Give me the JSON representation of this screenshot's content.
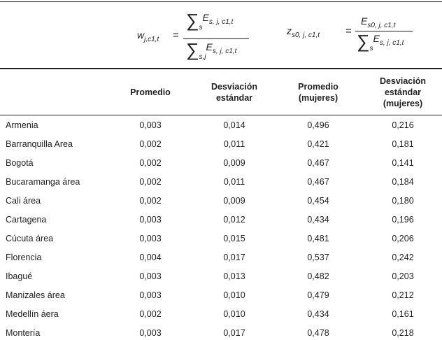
{
  "formulas": {
    "sum": "∑",
    "equals": "=",
    "w": {
      "symbol": "w",
      "symbol_sub": "j,c1,t",
      "num_sum_sub": "s",
      "num_E": "E",
      "num_E_sub": "s, j, c1,t",
      "den_sum_sub": "s,j",
      "den_E": "E",
      "den_E_sub": "s, j, c1,t"
    },
    "z": {
      "symbol": "z",
      "symbol_sub": "s0, j, c1,t",
      "num_E": "E",
      "num_E_sub": "s0, j, c1,t",
      "den_sum_sub": "s",
      "den_E": "E",
      "den_E_sub": "s, j, c1,t"
    }
  },
  "table": {
    "columns": [
      "Promedio",
      "Desviación estándar",
      "Promedio (mujeres)",
      "Desviación estándar (mujeres)"
    ],
    "rows": [
      [
        "Armenia",
        "0,003",
        "0,014",
        "0,496",
        "0,216"
      ],
      [
        "Barranquilla Area",
        "0,002",
        "0,011",
        "0,421",
        "0,181"
      ],
      [
        "Bogotá",
        "0,002",
        "0,009",
        "0,467",
        "0,141"
      ],
      [
        "Bucaramanga área",
        "0,002",
        "0,011",
        "0,467",
        "0,184"
      ],
      [
        "Cali área",
        "0,002",
        "0,009",
        "0,454",
        "0,180"
      ],
      [
        "Cartagena",
        "0,003",
        "0,012",
        "0,434",
        "0,196"
      ],
      [
        "Cúcuta área",
        "0,003",
        "0,015",
        "0,481",
        "0,206"
      ],
      [
        "Florencia",
        "0,004",
        "0,017",
        "0,537",
        "0,242"
      ],
      [
        "Ibagué",
        "0,003",
        "0,013",
        "0,482",
        "0,203"
      ],
      [
        "Manizales área",
        "0,003",
        "0,010",
        "0,479",
        "0,212"
      ],
      [
        "Medellín áera",
        "0,002",
        "0,010",
        "0,434",
        "0,161"
      ],
      [
        "Montería",
        "0,003",
        "0,017",
        "0,478",
        "0,218"
      ]
    ]
  }
}
